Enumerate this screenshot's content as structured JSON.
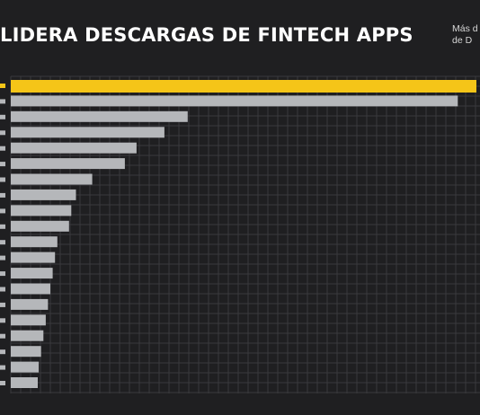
{
  "title": "LIDERA DESCARGAS DE FINTECH APPS",
  "subtitle": [
    "Más d",
    "de D"
  ],
  "colors": {
    "background": "#1f1f21",
    "grid": "#3a3a3d",
    "highlight_bar": "#f5c518",
    "bar": "#b5b7ba"
  },
  "chart_data": {
    "type": "bar",
    "orientation": "horizontal",
    "title": "LIDERA DESCARGAS DE FINTECH APPS",
    "categories": [
      "",
      "",
      "",
      "",
      "",
      "",
      "",
      "",
      "",
      "",
      "",
      "",
      "",
      "",
      "",
      "",
      "",
      "",
      "",
      ""
    ],
    "values": [
      100,
      96,
      38,
      33,
      27,
      24.5,
      17.5,
      14,
      13,
      12.5,
      10,
      9.5,
      9,
      8.5,
      8,
      7.5,
      7,
      6.5,
      6,
      5.8
    ],
    "highlight_index": 0,
    "xlim": [
      0,
      100
    ],
    "grid": true,
    "legend": "none"
  }
}
